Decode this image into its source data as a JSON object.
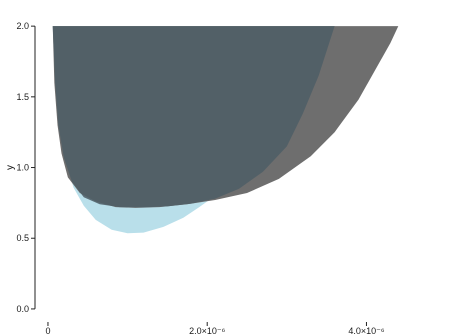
{
  "chart_data": {
    "type": "area",
    "title": "",
    "xlabel": "",
    "ylabel": "y",
    "xlim": [
      -1e-07,
      5.2e-06
    ],
    "ylim": [
      -0.05,
      2.1
    ],
    "grid": false,
    "legend": "none",
    "x_ticks": [
      {
        "value": 0,
        "label": "0"
      },
      {
        "value": 2e-06,
        "label": "2.0×10⁻⁶"
      },
      {
        "value": 4e-06,
        "label": "4.0×10⁻⁶"
      }
    ],
    "y_ticks": [
      {
        "value": 0.0,
        "label": "0.0"
      },
      {
        "value": 0.5,
        "label": "0.5"
      },
      {
        "value": 1.0,
        "label": "1.0"
      },
      {
        "value": 1.5,
        "label": "1.5"
      },
      {
        "value": 2.0,
        "label": "2.0"
      }
    ],
    "series": [
      {
        "color": "#b9dfea",
        "opacity": 1.0,
        "lower": [
          [
            6e-08,
            2.0
          ],
          [
            9e-08,
            1.6
          ],
          [
            1.4e-07,
            1.3
          ],
          [
            2.2e-07,
            1.05
          ],
          [
            3.2e-07,
            0.86
          ],
          [
            4.5e-07,
            0.73
          ],
          [
            6e-07,
            0.63
          ],
          [
            8e-07,
            0.56
          ],
          [
            1e-06,
            0.535
          ],
          [
            1.2e-06,
            0.54
          ],
          [
            1.45e-06,
            0.58
          ],
          [
            1.7e-06,
            0.645
          ],
          [
            1.9e-06,
            0.72
          ],
          [
            2.2e-06,
            0.84
          ],
          [
            2.6e-06,
            1.02
          ],
          [
            3e-06,
            1.25
          ],
          [
            3.3e-06,
            1.5
          ],
          [
            3.6e-06,
            2.0
          ]
        ],
        "upper_y": 2.0
      },
      {
        "color": "#6e6e6e",
        "opacity": 1.0,
        "lower": [
          [
            6e-08,
            2.0
          ],
          [
            8e-08,
            1.6
          ],
          [
            1.2e-07,
            1.3
          ],
          [
            1.7e-07,
            1.1
          ],
          [
            2.5e-07,
            0.93
          ],
          [
            4e-07,
            0.82
          ],
          [
            6e-07,
            0.76
          ],
          [
            8.5e-07,
            0.72
          ],
          [
            1.1e-06,
            0.715
          ],
          [
            1.4e-06,
            0.72
          ],
          [
            1.75e-06,
            0.74
          ],
          [
            2.1e-06,
            0.77
          ],
          [
            2.5e-06,
            0.82
          ],
          [
            2.9e-06,
            0.92
          ],
          [
            3.3e-06,
            1.08
          ],
          [
            3.6e-06,
            1.25
          ],
          [
            3.9e-06,
            1.48
          ],
          [
            4.1e-06,
            1.68
          ],
          [
            4.3e-06,
            1.88
          ],
          [
            4.4e-06,
            2.0
          ]
        ],
        "upper_y": 2.0
      },
      {
        "color": "#4e5f66",
        "opacity": 0.88,
        "lower": [
          [
            6e-08,
            2.0
          ],
          [
            9e-08,
            1.6
          ],
          [
            1.3e-07,
            1.3
          ],
          [
            2e-07,
            1.07
          ],
          [
            3e-07,
            0.9
          ],
          [
            4.5e-07,
            0.79
          ],
          [
            6.5e-07,
            0.74
          ],
          [
            9e-07,
            0.72
          ],
          [
            1.2e-06,
            0.718
          ],
          [
            1.5e-06,
            0.725
          ],
          [
            1.8e-06,
            0.745
          ],
          [
            2.1e-06,
            0.78
          ],
          [
            2.4e-06,
            0.85
          ],
          [
            2.7e-06,
            0.97
          ],
          [
            3e-06,
            1.15
          ],
          [
            3.2e-06,
            1.38
          ],
          [
            3.4e-06,
            1.65
          ],
          [
            3.6e-06,
            2.0
          ]
        ],
        "upper_y": 2.0
      }
    ]
  }
}
